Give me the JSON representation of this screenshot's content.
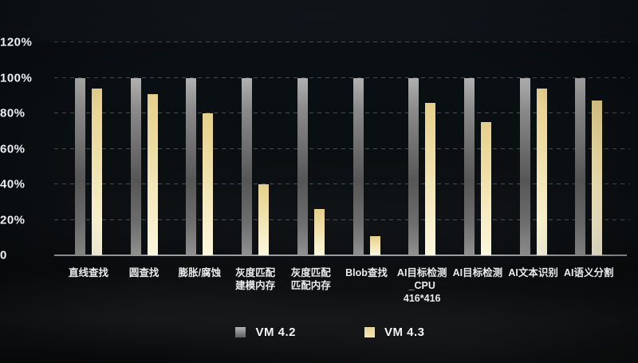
{
  "chart_data": {
    "type": "bar",
    "title": "",
    "xlabel": "",
    "ylabel": "",
    "categories": [
      "直线查找",
      "圆查找",
      "膨胀/腐蚀",
      "灰度匹配\n建模内存",
      "灰度匹配\n匹配内存",
      "Blob查找",
      "AI目标检测\n_CPU\n416*416",
      "AI目标检测",
      "AI文本识别",
      "AI语义分割"
    ],
    "series": [
      {
        "name": "VM 4.2",
        "color_key": "gray",
        "values": [
          100,
          100,
          100,
          100,
          100,
          100,
          100,
          100,
          100,
          100
        ]
      },
      {
        "name": "VM 4.3",
        "color_key": "gold",
        "values": [
          94,
          91,
          80,
          40,
          26,
          11,
          86,
          75,
          94,
          87
        ]
      }
    ],
    "y_ticks": [
      "0",
      "20%",
      "40%",
      "60%",
      "80%",
      "100%",
      "120%"
    ],
    "y_tick_values": [
      0,
      20,
      40,
      60,
      80,
      100,
      120
    ],
    "ylim": [
      0,
      120
    ],
    "grid": "dashed-horizontal",
    "legend_position": "bottom-center"
  },
  "colors": {
    "background": "#0b0f12",
    "gridline": "#565c60",
    "axis_line": "#989da0",
    "tick_text": "#eef1f2",
    "bar_gray_top": "#b0b0b0",
    "bar_gray_mid": "#565656",
    "bar_gold_top": "#e6cf8b",
    "bar_gold_bottom": "#fbf6dd"
  }
}
